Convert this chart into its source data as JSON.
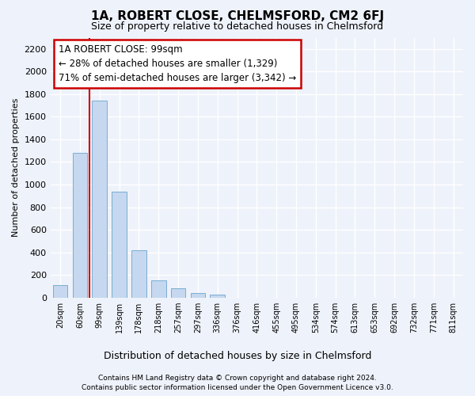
{
  "title": "1A, ROBERT CLOSE, CHELMSFORD, CM2 6FJ",
  "subtitle": "Size of property relative to detached houses in Chelmsford",
  "xlabel": "Distribution of detached houses by size in Chelmsford",
  "ylabel": "Number of detached properties",
  "bar_color": "#c5d8ef",
  "bar_edge_color": "#7aadd4",
  "background_color": "#eef2fa",
  "plot_bg_color": "#eef2fa",
  "grid_color": "#ffffff",
  "annotation_box_color": "#cc0000",
  "vline_color": "#cc0000",
  "vline_position": 2,
  "categories": [
    "20sqm",
    "60sqm",
    "99sqm",
    "139sqm",
    "178sqm",
    "218sqm",
    "257sqm",
    "297sqm",
    "336sqm",
    "376sqm",
    "416sqm",
    "455sqm",
    "495sqm",
    "534sqm",
    "574sqm",
    "613sqm",
    "653sqm",
    "692sqm",
    "732sqm",
    "771sqm",
    "811sqm"
  ],
  "values": [
    110,
    1280,
    1740,
    940,
    415,
    155,
    80,
    38,
    25,
    0,
    0,
    0,
    0,
    0,
    0,
    0,
    0,
    0,
    0,
    0,
    0
  ],
  "ylim": [
    0,
    2300
  ],
  "yticks": [
    0,
    200,
    400,
    600,
    800,
    1000,
    1200,
    1400,
    1600,
    1800,
    2000,
    2200
  ],
  "annotation_text": "1A ROBERT CLOSE: 99sqm\n← 28% of detached houses are smaller (1,329)\n71% of semi-detached houses are larger (3,342) →",
  "footnote1": "Contains HM Land Registry data © Crown copyright and database right 2024.",
  "footnote2": "Contains public sector information licensed under the Open Government Licence v3.0."
}
